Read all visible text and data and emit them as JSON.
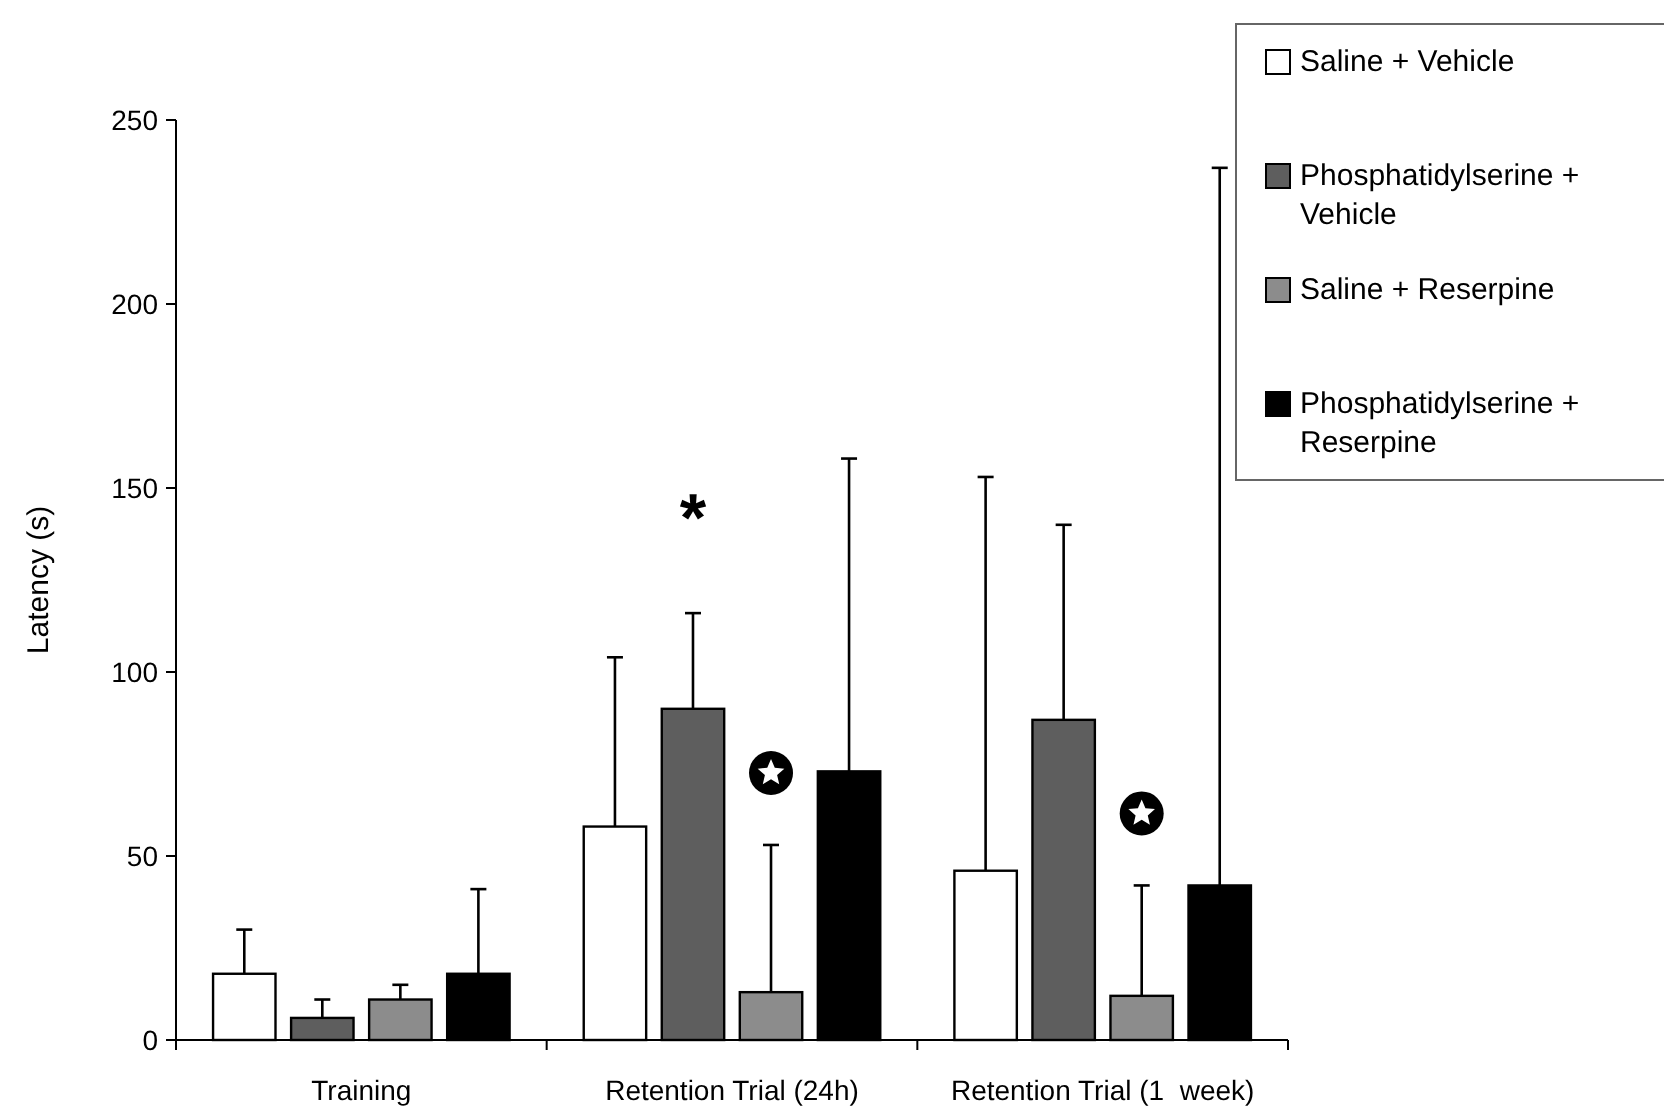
{
  "chart_data": {
    "type": "bar",
    "ylabel": "Latency (s)",
    "categories": [
      "Training",
      "Retention Trial (24h)",
      "Retention Trial (1  week)"
    ],
    "series": [
      {
        "name": "Saline + Vehicle",
        "color": "#ffffff",
        "values": [
          18,
          58,
          46
        ],
        "errors": [
          [
            18,
            30
          ],
          [
            58,
            104
          ],
          [
            46,
            153
          ]
        ]
      },
      {
        "name": "Phosphatidylserine + Vehicle",
        "color": "#5e5e5e",
        "values": [
          6,
          90,
          87
        ],
        "errors": [
          [
            6,
            11
          ],
          [
            90,
            116
          ],
          [
            87,
            140
          ]
        ]
      },
      {
        "name": "Saline + Reserpine",
        "color": "#8c8c8c",
        "values": [
          11,
          13,
          12
        ],
        "errors": [
          [
            11,
            15
          ],
          [
            13,
            53
          ],
          [
            12,
            42
          ]
        ]
      },
      {
        "name": "Phosphatidylserine + Reserpine",
        "color": "#000000",
        "values": [
          18,
          73,
          42
        ],
        "errors": [
          [
            18,
            41
          ],
          [
            73,
            158
          ],
          [
            42,
            237
          ]
        ]
      }
    ],
    "ylim": [
      0,
      250
    ],
    "yticks": [
      0,
      50,
      100,
      150,
      200,
      250
    ],
    "annotations": [
      "*"
    ],
    "legend": "top right",
    "grid": false
  }
}
